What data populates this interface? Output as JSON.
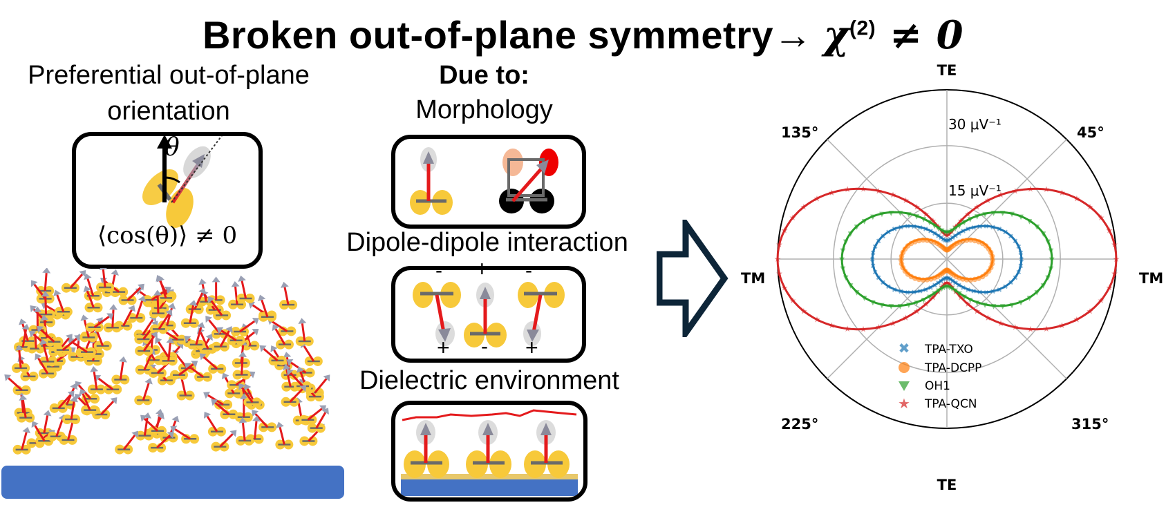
{
  "title": {
    "main": "Broken out-of-plane symmetry",
    "arrow": "→",
    "chi": "χ",
    "sup": "(2)",
    "tail": " ≠ 0"
  },
  "left": {
    "heading_line1": "Preferential out-of-plane",
    "heading_line2": "orientation",
    "theta": "θ",
    "formula": "⟨cos(θ)⟩ ≠ 0"
  },
  "middle": {
    "due_to": "Due to:",
    "morphology": "Morphology",
    "dipole": "Dipole-dipole  interaction",
    "dielectric": "Dielectric environment",
    "charges_top": [
      "-",
      "+",
      "-"
    ],
    "charges_bottom": [
      "+",
      "-",
      "+"
    ]
  },
  "polar": {
    "top": "TE",
    "bottom": "TE",
    "left": "TM",
    "right": "TM",
    "angles": [
      "135°",
      "45°",
      "225°",
      "315°"
    ],
    "rlabels": [
      "30 μV⁻¹",
      "15 μV⁻¹"
    ]
  },
  "legend": {
    "items": [
      {
        "label": "TPA-TXO",
        "color": "#1f77b4",
        "marker": "x-marker"
      },
      {
        "label": "TPA-DCPP",
        "color": "#ff7f0e",
        "marker": "circle-marker"
      },
      {
        "label": "OH1",
        "color": "#2ca02c",
        "marker": "triangle-marker"
      },
      {
        "label": "TPA-QCN",
        "color": "#d62728",
        "marker": "star-marker"
      }
    ]
  }
}
